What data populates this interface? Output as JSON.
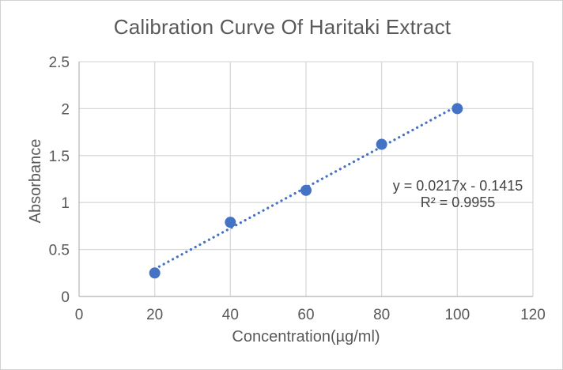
{
  "frame": {
    "background": "#FFFFFF",
    "border_color": "#D2D2D2"
  },
  "chart_data": {
    "type": "scatter",
    "title": "Calibration Curve Of Haritaki Extract",
    "xlabel": "Concentration(µg/ml)",
    "ylabel": "Absorbance",
    "x": [
      20,
      40,
      60,
      80,
      100
    ],
    "y": [
      0.25,
      0.79,
      1.13,
      1.62,
      2.0
    ],
    "xlim": [
      0,
      120
    ],
    "ylim": [
      0,
      2.5
    ],
    "xticks": [
      0,
      20,
      40,
      60,
      80,
      100,
      120
    ],
    "yticks": [
      0,
      0.5,
      1,
      1.5,
      2,
      2.5
    ],
    "grid": true,
    "legend": false,
    "trendline": {
      "type": "linear",
      "line_style": "dotted",
      "slope": 0.0217,
      "intercept": -0.1415,
      "x_start": 20,
      "x_end": 100
    },
    "annotation": {
      "equation": "y = 0.0217x - 0.1415",
      "r_squared": "R² = 0.9955"
    },
    "colors": {
      "marker": "#4472C4",
      "trendline": "#4472C4",
      "gridline": "#D9D9D9",
      "axis_line": "#BFBFBF",
      "text": "#595959",
      "annotation_text": "#444444"
    }
  }
}
